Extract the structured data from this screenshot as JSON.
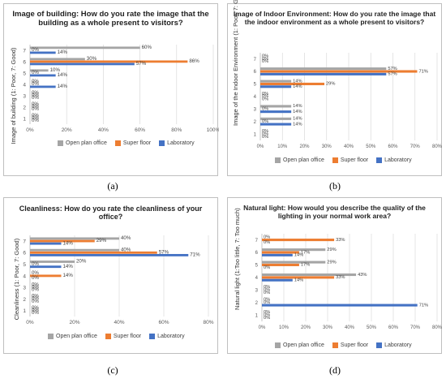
{
  "chart_data": [
    {
      "type": "bar",
      "orientation": "horizontal",
      "title": "Image of building: How do you rate the image that the building as a whole present to visitors?",
      "ylabel": "Image of building (1: Poor, 7: Good)",
      "categories": [
        "1",
        "2",
        "3",
        "4",
        "5",
        "6",
        "7"
      ],
      "xlim": [
        0,
        100
      ],
      "x_ticks": [
        "0%",
        "20%",
        "40%",
        "60%",
        "80%",
        "100%"
      ],
      "grid": true,
      "legend_position": "bottom",
      "caption": "(a)",
      "series": [
        {
          "name": "Open plan office",
          "color": "#a5a5a5",
          "values": [
            0,
            0,
            0,
            0,
            10,
            30,
            60
          ]
        },
        {
          "name": "Super floor",
          "color": "#ed7d31",
          "values": [
            0,
            0,
            0,
            0,
            0,
            86,
            0
          ]
        },
        {
          "name": "Laboratory",
          "color": "#4472c4",
          "values": [
            0,
            0,
            0,
            14,
            14,
            57,
            14
          ]
        }
      ]
    },
    {
      "type": "bar",
      "orientation": "horizontal",
      "title": "Image of Indoor Environment: How do you rate the image that the indoor environment as a whole present to visitors?",
      "ylabel": "Image of the Indoor Environment (1: Poor, 7: Good)",
      "categories": [
        "1",
        "2",
        "3",
        "4",
        "5",
        "6",
        "7"
      ],
      "xlim": [
        0,
        80
      ],
      "x_ticks": [
        "0%",
        "10%",
        "20%",
        "30%",
        "40%",
        "50%",
        "60%",
        "70%",
        "80%"
      ],
      "grid": true,
      "legend_position": "bottom",
      "caption": "(b)",
      "series": [
        {
          "name": "Open plan office",
          "color": "#a5a5a5",
          "values": [
            0,
            14,
            14,
            0,
            14,
            57,
            0
          ]
        },
        {
          "name": "Super floor",
          "color": "#ed7d31",
          "values": [
            0,
            0,
            0,
            0,
            29,
            71,
            0
          ]
        },
        {
          "name": "Laboratory",
          "color": "#4472c4",
          "values": [
            0,
            14,
            14,
            0,
            14,
            57,
            0
          ]
        }
      ]
    },
    {
      "type": "bar",
      "orientation": "horizontal",
      "title": "Cleanliness: How do you rate the cleanliness of your office?",
      "ylabel": "Cleanliness (1: Poor, 7: Good)",
      "categories": [
        "1",
        "2",
        "3",
        "4",
        "5",
        "6",
        "7"
      ],
      "xlim": [
        0,
        80
      ],
      "x_ticks": [
        "0%",
        "20%",
        "40%",
        "60%",
        "80%"
      ],
      "grid": true,
      "legend_position": "bottom",
      "caption": "(c)",
      "series": [
        {
          "name": "Open plan office",
          "color": "#a5a5a5",
          "values": [
            0,
            0,
            0,
            0,
            20,
            40,
            40
          ]
        },
        {
          "name": "Super floor",
          "color": "#ed7d31",
          "values": [
            0,
            0,
            0,
            14,
            0,
            57,
            29
          ]
        },
        {
          "name": "Laboratory",
          "color": "#4472c4",
          "values": [
            0,
            0,
            0,
            0,
            14,
            71,
            14
          ]
        }
      ]
    },
    {
      "type": "bar",
      "orientation": "horizontal",
      "title": "Natural light: How would you describe the quality of the lighting in your normal work area?",
      "ylabel": "Natural light (1:Too little, 7: Too much)",
      "categories": [
        "1",
        "2",
        "3",
        "4",
        "5",
        "6",
        "7"
      ],
      "xlim": [
        0,
        80
      ],
      "x_ticks": [
        "0%",
        "10%",
        "20%",
        "30%",
        "40%",
        "50%",
        "60%",
        "70%",
        "80%"
      ],
      "grid": true,
      "legend_position": "bottom",
      "caption": "(d)",
      "series": [
        {
          "name": "Open plan office",
          "color": "#a5a5a5",
          "values": [
            0,
            0,
            0,
            43,
            29,
            29,
            0
          ]
        },
        {
          "name": "Super floor",
          "color": "#ed7d31",
          "values": [
            0,
            0,
            0,
            33,
            17,
            17,
            33
          ]
        },
        {
          "name": "Laboratory",
          "color": "#4472c4",
          "values": [
            0,
            71,
            0,
            14,
            0,
            14,
            0
          ]
        }
      ]
    }
  ]
}
